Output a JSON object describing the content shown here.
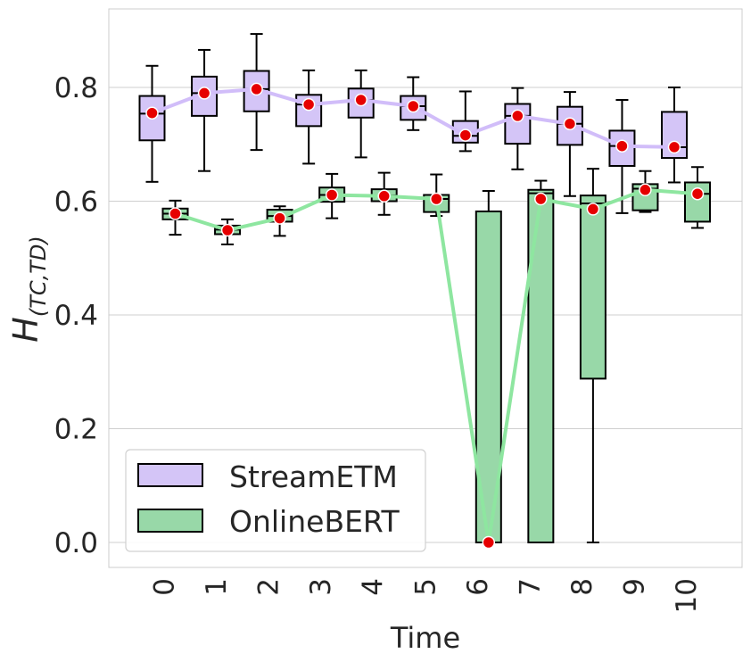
{
  "chart_data": {
    "type": "box",
    "title": "",
    "xlabel": "Time",
    "ylabel": "H(TC,TD)",
    "ylabel_main": "H",
    "ylabel_sub": "(TC,TD)",
    "categories": [
      "0",
      "1",
      "2",
      "3",
      "4",
      "5",
      "6",
      "7",
      "8",
      "9",
      "10"
    ],
    "ylim": [
      -0.045,
      0.925
    ],
    "yticks": [
      0.0,
      0.2,
      0.4,
      0.6,
      0.8
    ],
    "ytick_labels": [
      "0.0",
      "0.2",
      "0.4",
      "0.6",
      "0.8"
    ],
    "grid": true,
    "legend_position": "lower-left",
    "series": [
      {
        "name": "StreamETM",
        "color": "#d4c5f7",
        "line_color": "#d1bdf9",
        "boxes": [
          {
            "min": 0.634,
            "q1": 0.707,
            "median": 0.754,
            "q3": 0.785,
            "max": 0.838
          },
          {
            "min": 0.653,
            "q1": 0.75,
            "median": 0.79,
            "q3": 0.819,
            "max": 0.866
          },
          {
            "min": 0.69,
            "q1": 0.758,
            "median": 0.797,
            "q3": 0.829,
            "max": 0.894
          },
          {
            "min": 0.666,
            "q1": 0.732,
            "median": 0.77,
            "q3": 0.787,
            "max": 0.83
          },
          {
            "min": 0.677,
            "q1": 0.747,
            "median": 0.778,
            "q3": 0.798,
            "max": 0.83
          },
          {
            "min": 0.725,
            "q1": 0.743,
            "median": 0.767,
            "q3": 0.785,
            "max": 0.818
          },
          {
            "min": 0.688,
            "q1": 0.703,
            "median": 0.715,
            "q3": 0.741,
            "max": 0.793
          },
          {
            "min": 0.656,
            "q1": 0.701,
            "median": 0.75,
            "q3": 0.771,
            "max": 0.799
          },
          {
            "min": 0.609,
            "q1": 0.699,
            "median": 0.736,
            "q3": 0.766,
            "max": 0.792
          },
          {
            "min": 0.579,
            "q1": 0.662,
            "median": 0.697,
            "q3": 0.724,
            "max": 0.778
          },
          {
            "min": 0.633,
            "q1": 0.676,
            "median": 0.695,
            "q3": 0.757,
            "max": 0.8
          }
        ],
        "means": [
          0.755,
          0.79,
          0.797,
          0.77,
          0.778,
          0.767,
          0.716,
          0.75,
          0.736,
          0.697,
          0.695
        ]
      },
      {
        "name": "OnlineBERT",
        "color": "#98d8a8",
        "line_color": "#8ee6a0",
        "boxes": [
          {
            "min": 0.541,
            "q1": 0.568,
            "median": 0.578,
            "q3": 0.587,
            "max": 0.601
          },
          {
            "min": 0.524,
            "q1": 0.542,
            "median": 0.55,
            "q3": 0.557,
            "max": 0.568
          },
          {
            "min": 0.539,
            "q1": 0.564,
            "median": 0.574,
            "q3": 0.585,
            "max": 0.591
          },
          {
            "min": 0.57,
            "q1": 0.599,
            "median": 0.611,
            "q3": 0.624,
            "max": 0.648
          },
          {
            "min": 0.576,
            "q1": 0.6,
            "median": 0.61,
            "q3": 0.621,
            "max": 0.65
          },
          {
            "min": 0.574,
            "q1": 0.581,
            "median": 0.604,
            "q3": 0.611,
            "max": 0.647
          },
          {
            "min": 0.0,
            "q1": 0.0,
            "median": 0.0,
            "q3": 0.582,
            "max": 0.618
          },
          {
            "min": 0.0,
            "q1": 0.0,
            "median": 0.614,
            "q3": 0.62,
            "max": 0.636
          },
          {
            "min": 0.0,
            "q1": 0.288,
            "median": 0.596,
            "q3": 0.61,
            "max": 0.657
          },
          {
            "min": 0.581,
            "q1": 0.584,
            "median": 0.622,
            "q3": 0.63,
            "max": 0.653
          },
          {
            "min": 0.553,
            "q1": 0.564,
            "median": 0.613,
            "q3": 0.633,
            "max": 0.66
          }
        ],
        "means": [
          0.578,
          0.549,
          0.57,
          0.611,
          0.609,
          0.604,
          0.0,
          0.604,
          0.586,
          0.62,
          0.613
        ]
      }
    ]
  }
}
